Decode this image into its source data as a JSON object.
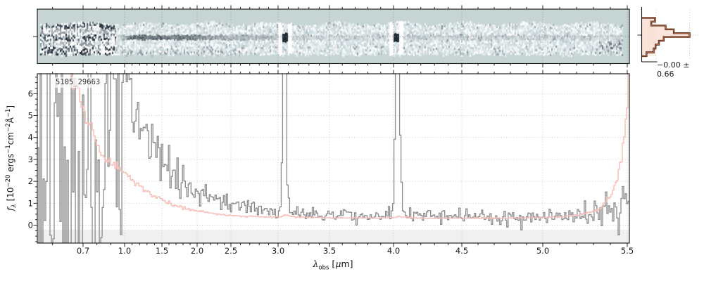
{
  "object_label": "5105_29663",
  "histogram": {
    "stat_label": "−0.00 ± 0.66",
    "bins_top_to_bottom": [
      0.28,
      0.2,
      0.5,
      0.67,
      1.0,
      0.46,
      0.36,
      0.29,
      0.25,
      0.1
    ],
    "fill": "#fae0d6",
    "edge_dark": "#3a2012",
    "edge_light": "#c56a48",
    "band_fill": "#fae0d6"
  },
  "panel_2d": {
    "background": "#c6d5d3",
    "dark": "#18222e",
    "light_blue": "#b7cbd0",
    "noisy_left_lambda_max": 0.93,
    "trace_lambda_range": [
      0.95,
      5.5
    ]
  },
  "axes": {
    "xlabel_parts": [
      [
        "λ",
        "i"
      ],
      [
        "obs",
        "sub"
      ],
      [
        " [",
        ""
      ],
      [
        "μ",
        "i"
      ],
      [
        "m]",
        ""
      ]
    ],
    "ylabel_parts": [
      [
        "f",
        "i"
      ],
      [
        "λ",
        "isub"
      ],
      [
        " [10",
        ""
      ],
      [
        "−20",
        "sup"
      ],
      [
        " ergs",
        ""
      ],
      [
        "−1",
        "sup"
      ],
      [
        "cm",
        ""
      ],
      [
        "−2",
        "sup"
      ],
      [
        "Å",
        ""
      ],
      [
        "−1",
        "sup"
      ],
      [
        "]",
        ""
      ]
    ]
  },
  "chart_data": {
    "type": "line",
    "title": "5105_29663",
    "xlabel": "lambda_obs [um]",
    "ylabel": "f_lambda [10^-20 ergs^-1 cm^-2 A^-1]",
    "xlim": [
      0.55,
      5.52
    ],
    "ylim": [
      -0.82,
      6.91
    ],
    "grid": true,
    "x_ticks": [
      "0.7",
      "1.0",
      "1.5",
      "2.0",
      "2.5",
      "3.0",
      "3.5",
      "4.0",
      "4.5",
      "5.0",
      "5.5"
    ],
    "x_tick_values": [
      0.7,
      1.0,
      1.5,
      2.0,
      2.5,
      3.0,
      3.5,
      4.0,
      4.5,
      5.0,
      5.5
    ],
    "y_ticks": [
      0,
      1,
      2,
      3,
      4,
      5,
      6
    ],
    "x_minor_step": 0.1,
    "y_minor_step": 0.25,
    "lambda_x_map": [
      [
        0.55,
        53
      ],
      [
        0.7,
        118
      ],
      [
        1.0,
        177
      ],
      [
        1.5,
        230
      ],
      [
        2.0,
        280
      ],
      [
        2.5,
        328
      ],
      [
        3.0,
        395
      ],
      [
        3.5,
        468
      ],
      [
        4.0,
        559
      ],
      [
        4.5,
        656
      ],
      [
        5.0,
        771
      ],
      [
        5.5,
        891
      ],
      [
        5.52,
        894
      ]
    ],
    "emission_lines": [
      3.06,
      4.02
    ],
    "series": [
      {
        "name": "flux",
        "color": "#8b8b8b",
        "keypoints": [
          [
            0.91,
            6.5
          ],
          [
            0.94,
            7.2
          ],
          [
            1.0,
            7.2
          ],
          [
            1.04,
            6.9
          ],
          [
            1.08,
            6.1
          ],
          [
            1.12,
            5.6
          ],
          [
            1.16,
            5.2
          ],
          [
            1.2,
            4.9
          ],
          [
            1.25,
            4.5
          ],
          [
            1.3,
            4.2
          ],
          [
            1.35,
            3.9
          ],
          [
            1.4,
            3.6
          ],
          [
            1.45,
            3.35
          ],
          [
            1.5,
            3.1
          ],
          [
            1.6,
            2.6
          ],
          [
            1.7,
            2.2
          ],
          [
            1.8,
            1.95
          ],
          [
            1.9,
            1.7
          ],
          [
            2.0,
            1.5
          ],
          [
            2.1,
            1.38
          ],
          [
            2.2,
            1.25
          ],
          [
            2.3,
            1.12
          ],
          [
            2.4,
            1.0
          ],
          [
            2.5,
            0.92
          ],
          [
            2.6,
            0.85
          ],
          [
            2.7,
            0.78
          ],
          [
            2.8,
            0.7
          ],
          [
            2.9,
            0.62
          ],
          [
            3.0,
            0.56
          ],
          [
            3.02,
            0.8
          ],
          [
            3.04,
            3.0
          ],
          [
            3.055,
            9.5
          ],
          [
            3.075,
            9.5
          ],
          [
            3.09,
            2.0
          ],
          [
            3.11,
            0.8
          ],
          [
            3.14,
            0.62
          ],
          [
            3.2,
            0.6
          ],
          [
            3.3,
            0.56
          ],
          [
            3.4,
            0.53
          ],
          [
            3.5,
            0.5
          ],
          [
            3.6,
            0.47
          ],
          [
            3.7,
            0.44
          ],
          [
            3.8,
            0.42
          ],
          [
            3.9,
            0.41
          ],
          [
            3.96,
            0.44
          ],
          [
            3.99,
            0.6
          ],
          [
            4.005,
            2.0
          ],
          [
            4.02,
            9.5
          ],
          [
            4.035,
            9.5
          ],
          [
            4.05,
            4.0
          ],
          [
            4.065,
            1.0
          ],
          [
            4.09,
            0.5
          ],
          [
            4.15,
            0.42
          ],
          [
            4.3,
            0.4
          ],
          [
            4.5,
            0.37
          ],
          [
            4.7,
            0.39
          ],
          [
            4.9,
            0.37
          ],
          [
            5.1,
            0.4
          ],
          [
            5.2,
            0.42
          ],
          [
            5.3,
            0.46
          ],
          [
            5.4,
            0.5
          ],
          [
            5.45,
            0.55
          ],
          [
            5.5,
            0.7
          ],
          [
            5.52,
            0.9
          ]
        ]
      },
      {
        "name": "error",
        "color": "#f7bab4",
        "keypoints": [
          [
            0.55,
            9.5
          ],
          [
            0.62,
            9.0
          ],
          [
            0.66,
            7.0
          ],
          [
            0.7,
            5.2
          ],
          [
            0.73,
            4.4
          ],
          [
            0.76,
            4.6
          ],
          [
            0.8,
            3.6
          ],
          [
            0.85,
            3.1
          ],
          [
            0.9,
            2.8
          ],
          [
            0.95,
            2.6
          ],
          [
            1.0,
            2.5
          ],
          [
            1.1,
            2.1
          ],
          [
            1.2,
            1.8
          ],
          [
            1.3,
            1.55
          ],
          [
            1.4,
            1.35
          ],
          [
            1.5,
            1.15
          ],
          [
            1.6,
            1.0
          ],
          [
            1.7,
            0.9
          ],
          [
            1.8,
            0.8
          ],
          [
            1.9,
            0.72
          ],
          [
            2.0,
            0.65
          ],
          [
            2.2,
            0.55
          ],
          [
            2.4,
            0.47
          ],
          [
            2.6,
            0.42
          ],
          [
            2.8,
            0.39
          ],
          [
            3.0,
            0.37
          ],
          [
            3.07,
            0.44
          ],
          [
            3.2,
            0.36
          ],
          [
            3.5,
            0.34
          ],
          [
            3.8,
            0.33
          ],
          [
            4.0,
            0.33
          ],
          [
            4.03,
            0.4
          ],
          [
            4.2,
            0.32
          ],
          [
            4.5,
            0.32
          ],
          [
            4.8,
            0.33
          ],
          [
            5.0,
            0.35
          ],
          [
            5.1,
            0.38
          ],
          [
            5.2,
            0.45
          ],
          [
            5.3,
            0.62
          ],
          [
            5.35,
            0.85
          ],
          [
            5.4,
            1.3
          ],
          [
            5.44,
            2.0
          ],
          [
            5.47,
            3.2
          ],
          [
            5.5,
            5.5
          ],
          [
            5.52,
            9.0
          ]
        ]
      }
    ],
    "noise": {
      "seed": 12345,
      "pixels": 420,
      "flux_sigma_factor": 0.5,
      "err_jitter": 0.04,
      "wild_lambda_max": 0.91
    }
  },
  "style_colors": {
    "grid": "#c8c8c8",
    "spine": "#111111",
    "below_zero_band": "#f0f0f0",
    "tick_label": "#1a1a1a"
  }
}
